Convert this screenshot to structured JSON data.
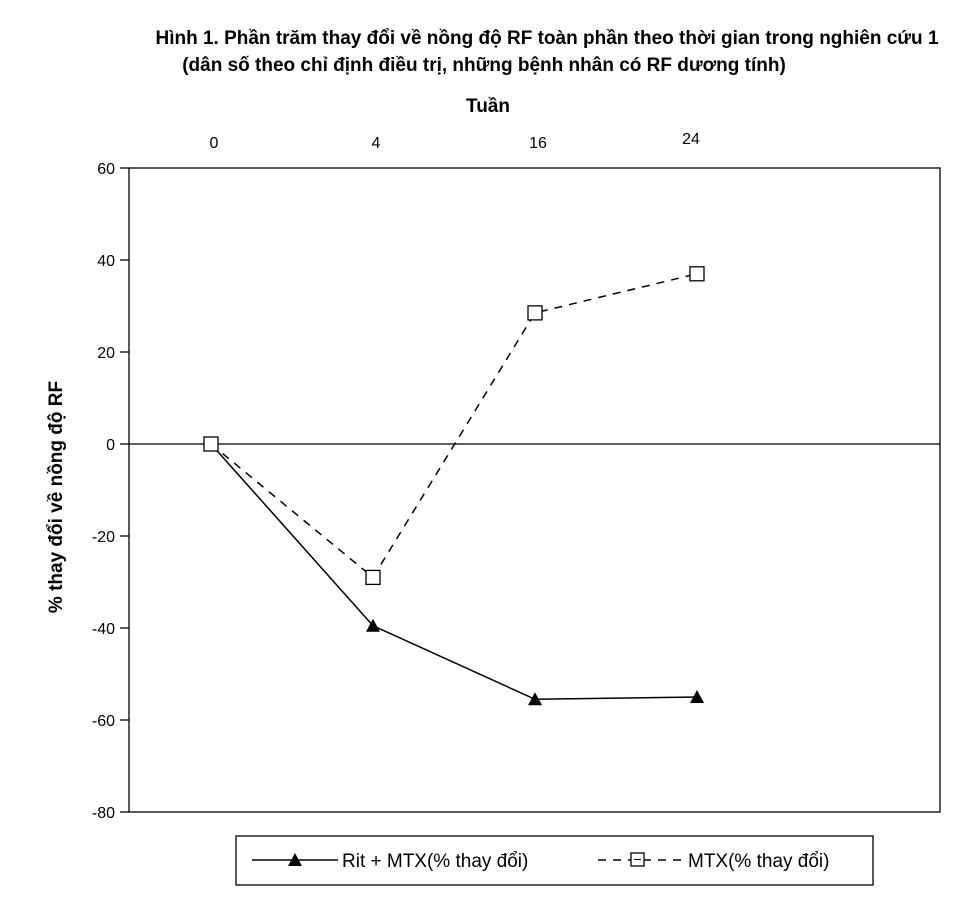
{
  "chart_data": {
    "type": "line",
    "title_line1": "Hình 1. Phần trăm thay đổi về nồng độ RF toàn phần theo thời gian trong nghiên cứu 1",
    "title_line2": "(dân số theo chỉ định điều trị, những bệnh nhân có RF dương tính)",
    "xlabel": "Tuần",
    "ylabel": "% thay đổi về nồng độ RF",
    "x": [
      0,
      4,
      16,
      24
    ],
    "x_tick_labels": [
      "0",
      "4",
      "16",
      "24"
    ],
    "y_ticks": [
      60,
      40,
      20,
      0,
      -20,
      -40,
      -60,
      -80
    ],
    "ylim": [
      -80,
      60
    ],
    "x_axis_position": "top",
    "legend_position": "bottom",
    "series": [
      {
        "name": "Rit + MTX(% thay đổi)",
        "values": [
          0,
          -39.5,
          -55.5,
          -55
        ],
        "marker": "filled-triangle",
        "line": "solid",
        "color": "#000000"
      },
      {
        "name": "MTX(% thay đổi)",
        "values": [
          0,
          -29,
          28.5,
          37
        ],
        "marker": "open-square",
        "line": "dashed",
        "color": "#000000"
      }
    ]
  }
}
